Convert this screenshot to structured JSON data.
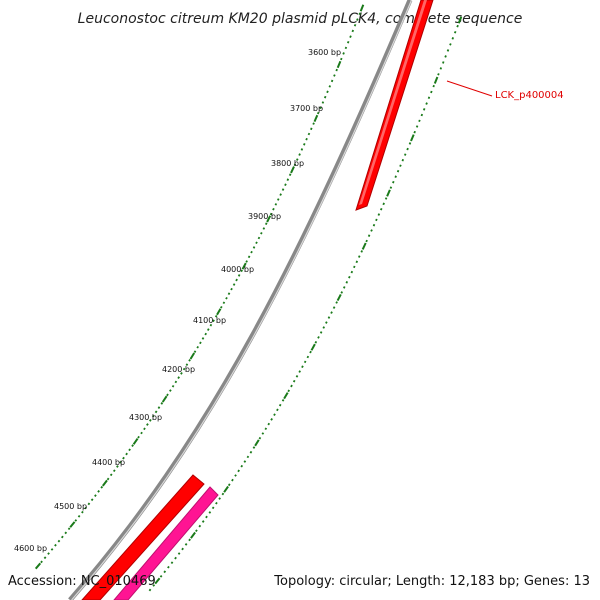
{
  "title": "Leuconostoc citreum KM20 plasmid pLCK4, complete sequence",
  "colors": {
    "backbone": "#888888",
    "tick": "#1a7a1a",
    "gene_forward": "#ff0000",
    "gene_reverse_outer": "#ff1493",
    "label": "#e00000"
  },
  "tick_labels": [
    {
      "text": "3600 bp"
    },
    {
      "text": "3700 bp"
    },
    {
      "text": "3800 bp"
    },
    {
      "text": "3900 bp"
    },
    {
      "text": "4000 bp"
    },
    {
      "text": "4100 bp"
    },
    {
      "text": "4200 bp"
    },
    {
      "text": "4300 bp"
    },
    {
      "text": "4400 bp"
    },
    {
      "text": "4500 bp"
    },
    {
      "text": "4600 bp"
    }
  ],
  "gene_label": "LCK_p400004",
  "footer": {
    "accession": "Accession: NC_010469",
    "summary": "Topology: circular; Length: 12,183 bp; Genes: 13"
  }
}
